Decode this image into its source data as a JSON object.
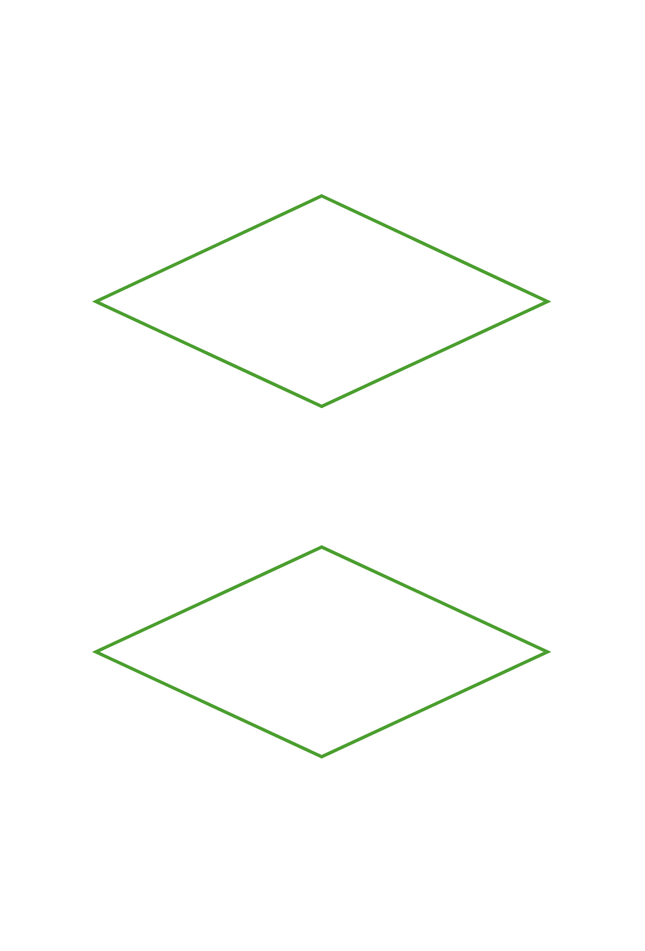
{
  "colors": {
    "background": "#ffffff",
    "diamond_stroke": "#4a9e2e"
  },
  "shapes": [
    {
      "kind": "diamond",
      "name": "diamond-top",
      "label": ""
    },
    {
      "kind": "diamond",
      "name": "diamond-bottom",
      "label": ""
    }
  ]
}
